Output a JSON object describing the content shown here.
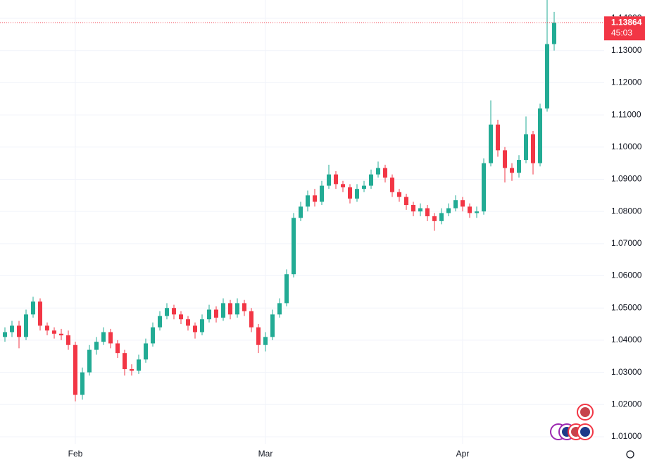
{
  "chart_data": {
    "type": "candlestick",
    "categories": [
      null,
      null,
      null,
      null,
      null,
      null,
      null,
      null,
      null,
      null,
      "Feb",
      null,
      null,
      null,
      null,
      null,
      null,
      null,
      null,
      null,
      null,
      null,
      null,
      null,
      null,
      null,
      null,
      null,
      null,
      null,
      null,
      null,
      null,
      null,
      null,
      null,
      null,
      "Mar",
      null,
      null,
      null,
      null,
      null,
      null,
      null,
      null,
      null,
      null,
      null,
      null,
      null,
      null,
      null,
      null,
      null,
      null,
      null,
      null,
      null,
      null,
      null,
      null,
      null,
      null,
      null,
      "Apr",
      null,
      null,
      null,
      null,
      null,
      null,
      null,
      null,
      null,
      null,
      null,
      null,
      null
    ],
    "open": [
      1.041,
      1.0425,
      1.0445,
      1.041,
      1.048,
      1.052,
      1.0445,
      1.043,
      1.042,
      1.0415,
      1.0385,
      1.023,
      1.03,
      1.037,
      1.0395,
      1.0425,
      1.039,
      1.036,
      1.031,
      1.0305,
      1.034,
      1.039,
      1.044,
      1.0475,
      1.05,
      1.048,
      1.0465,
      1.0445,
      1.0425,
      1.0465,
      1.0495,
      1.047,
      1.0515,
      1.048,
      1.0515,
      1.049,
      1.044,
      1.0385,
      1.041,
      1.048,
      1.0515,
      1.0605,
      1.078,
      1.0815,
      1.085,
      1.083,
      1.088,
      1.0915,
      1.0885,
      1.0875,
      1.084,
      1.087,
      1.088,
      1.0915,
      1.0935,
      1.0905,
      1.086,
      1.0845,
      1.082,
      1.08,
      1.081,
      1.0785,
      1.077,
      1.0795,
      1.081,
      1.0835,
      1.0815,
      1.0795,
      1.08,
      1.095,
      1.107,
      1.099,
      1.0935,
      1.092,
      1.096,
      1.104,
      1.095,
      1.112,
      1.132
    ],
    "high": [
      1.044,
      1.046,
      1.046,
      1.0495,
      1.0535,
      1.053,
      1.0455,
      1.044,
      1.0435,
      1.043,
      1.0395,
      1.0315,
      1.0385,
      1.041,
      1.044,
      1.0435,
      1.04,
      1.037,
      1.0325,
      1.0355,
      1.0405,
      1.0455,
      1.049,
      1.0515,
      1.051,
      1.049,
      1.0475,
      1.0455,
      1.048,
      1.051,
      1.0505,
      1.053,
      1.0525,
      1.053,
      1.0525,
      1.05,
      1.045,
      1.0425,
      1.0495,
      1.053,
      1.062,
      1.0795,
      1.083,
      1.0865,
      1.087,
      1.0895,
      1.0945,
      1.0925,
      1.0895,
      1.0885,
      1.0885,
      1.0895,
      1.093,
      1.0955,
      1.0945,
      1.0915,
      1.087,
      1.0855,
      1.083,
      1.0825,
      1.082,
      1.0795,
      1.081,
      1.0825,
      1.085,
      1.0845,
      1.0825,
      1.0815,
      1.0965,
      1.1145,
      1.1085,
      1.1,
      1.095,
      1.0975,
      1.1095,
      1.105,
      1.1135,
      1.146,
      1.142
    ],
    "low": [
      1.0395,
      1.041,
      1.0375,
      1.04,
      1.047,
      1.043,
      1.0415,
      1.0405,
      1.04,
      1.037,
      1.021,
      1.0215,
      1.029,
      1.0355,
      1.0385,
      1.0375,
      1.0345,
      1.029,
      1.029,
      1.0295,
      1.033,
      1.038,
      1.043,
      1.0465,
      1.0465,
      1.045,
      1.043,
      1.0405,
      1.0415,
      1.0455,
      1.0455,
      1.046,
      1.0465,
      1.047,
      1.0475,
      1.0425,
      1.036,
      1.0365,
      1.04,
      1.047,
      1.0505,
      1.0595,
      1.077,
      1.08,
      1.0815,
      1.082,
      1.087,
      1.087,
      1.086,
      1.0825,
      1.083,
      1.086,
      1.087,
      1.0905,
      1.089,
      1.0845,
      1.083,
      1.0805,
      1.0785,
      1.0785,
      1.077,
      1.074,
      1.076,
      1.0785,
      1.08,
      1.08,
      1.078,
      1.078,
      1.079,
      1.094,
      1.097,
      1.089,
      1.0895,
      1.0905,
      1.095,
      1.0915,
      1.094,
      1.111,
      1.13
    ],
    "close": [
      1.0425,
      1.0445,
      1.041,
      1.048,
      1.052,
      1.0445,
      1.043,
      1.042,
      1.0415,
      1.0385,
      1.023,
      1.03,
      1.037,
      1.0395,
      1.0425,
      1.039,
      1.036,
      1.031,
      1.0305,
      1.034,
      1.039,
      1.044,
      1.0475,
      1.05,
      1.048,
      1.0465,
      1.0445,
      1.0425,
      1.0465,
      1.0495,
      1.047,
      1.0515,
      1.048,
      1.0515,
      1.049,
      1.044,
      1.0385,
      1.041,
      1.048,
      1.0515,
      1.0605,
      1.078,
      1.0815,
      1.085,
      1.083,
      1.088,
      1.0915,
      1.0885,
      1.0875,
      1.084,
      1.087,
      1.088,
      1.0915,
      1.0935,
      1.0905,
      1.086,
      1.0845,
      1.082,
      1.08,
      1.081,
      1.0785,
      1.077,
      1.0795,
      1.081,
      1.0835,
      1.0815,
      1.0795,
      1.08,
      1.095,
      1.107,
      1.099,
      1.0935,
      1.092,
      1.096,
      1.104,
      1.095,
      1.112,
      1.132,
      1.13864
    ],
    "up_color": "#22ab94",
    "down_color": "#f23645",
    "ylim": [
      1.0078,
      1.1457
    ],
    "yticks": [
      {
        "value": 1.01,
        "label": "1.01000"
      },
      {
        "value": 1.02,
        "label": "1.02000"
      },
      {
        "value": 1.03,
        "label": "1.03000"
      },
      {
        "value": 1.04,
        "label": "1.04000"
      },
      {
        "value": 1.05,
        "label": "1.05000"
      },
      {
        "value": 1.06,
        "label": "1.06000"
      },
      {
        "value": 1.07,
        "label": "1.07000"
      },
      {
        "value": 1.08,
        "label": "1.08000"
      },
      {
        "value": 1.09,
        "label": "1.09000"
      },
      {
        "value": 1.1,
        "label": "1.10000"
      },
      {
        "value": 1.11,
        "label": "1.11000"
      },
      {
        "value": 1.12,
        "label": "1.12000"
      },
      {
        "value": 1.13,
        "label": "1.13000"
      },
      {
        "value": 1.14,
        "label": "1.14000"
      }
    ],
    "grid": true,
    "countdown": "45:03"
  }
}
